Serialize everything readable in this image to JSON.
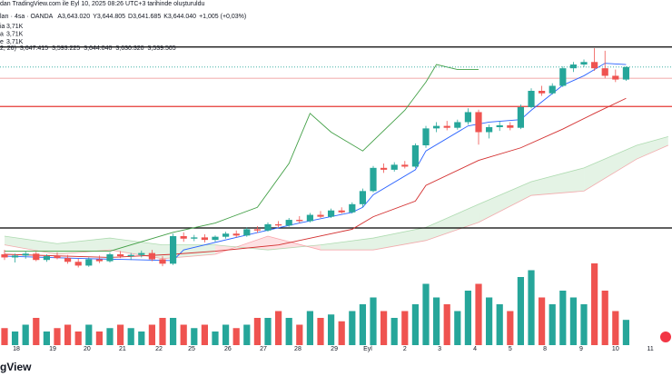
{
  "chart_data": {
    "type": "candlestick",
    "title": "dan TradingView.com ile Eyl 10, 2025 08:26 UTC+3 tarihinde oluşturuldu",
    "symbol": "ları · 4sa · OANDA",
    "ohlc": [
      {
        "key": "A",
        "value": "3,643.020"
      },
      {
        "key": "Y",
        "value": "3,644.805"
      },
      {
        "key": "D",
        "value": "3,641.685"
      },
      {
        "key": "K",
        "value": "3,644.040"
      }
    ],
    "change": "+1,005 (+0,03%)",
    "volume_rows": [
      {
        "name": "ia",
        "value": "3,71K"
      },
      {
        "name": "a",
        "value": "3,71K"
      },
      {
        "name": "e",
        "value": "3,71K"
      }
    ],
    "ichimoku_label": "2, 26)",
    "ichimoku_values": [
      {
        "value": "3,647.415",
        "color": "#2962ff"
      },
      {
        "value": "3,593.225",
        "color": "#d32f2f"
      },
      {
        "value": "3,644.040",
        "color": "#43a047"
      },
      {
        "value": "3,630.320",
        "color": "#a5d6a7"
      },
      {
        "value": "3,539.505",
        "color": "#ef9a9a"
      }
    ],
    "logo": "gView",
    "up_color": "#26a69a",
    "down_color": "#ef5350",
    "open": [
      3345,
      3340,
      3343,
      3346,
      3336,
      3342,
      3339,
      3333,
      3327,
      3337,
      3334,
      3345,
      3342,
      3344,
      3347,
      3337,
      3330,
      3374,
      3370,
      3372,
      3368,
      3373,
      3378,
      3375,
      3385,
      3383,
      3393,
      3391,
      3400,
      3398,
      3408,
      3405,
      3415,
      3412,
      3425,
      3446,
      3483,
      3480,
      3488,
      3485,
      3519,
      3546,
      3550,
      3547,
      3556,
      3572,
      3540,
      3548,
      3551,
      3547,
      3580,
      3606,
      3602,
      3614,
      3642,
      3648,
      3652,
      3642,
      3630,
      3624
    ],
    "high": [
      3352,
      3346,
      3350,
      3349,
      3345,
      3348,
      3344,
      3338,
      3340,
      3343,
      3348,
      3350,
      3347,
      3351,
      3352,
      3342,
      3378,
      3380,
      3376,
      3377,
      3375,
      3381,
      3383,
      3388,
      3390,
      3396,
      3398,
      3403,
      3406,
      3411,
      3414,
      3418,
      3420,
      3428,
      3450,
      3486,
      3490,
      3492,
      3494,
      3522,
      3550,
      3556,
      3558,
      3560,
      3578,
      3576,
      3552,
      3557,
      3556,
      3584,
      3610,
      3614,
      3618,
      3645,
      3652,
      3656,
      3674,
      3670,
      3640,
      3645
    ],
    "low": [
      3336,
      3332,
      3338,
      3334,
      3333,
      3337,
      3330,
      3324,
      3325,
      3331,
      3332,
      3339,
      3336,
      3340,
      3334,
      3326,
      3328,
      3365,
      3366,
      3364,
      3365,
      3370,
      3372,
      3373,
      3379,
      3381,
      3388,
      3389,
      3395,
      3396,
      3403,
      3403,
      3410,
      3410,
      3420,
      3444,
      3475,
      3477,
      3482,
      3483,
      3515,
      3540,
      3543,
      3544,
      3552,
      3520,
      3530,
      3542,
      3543,
      3545,
      3578,
      3598,
      3600,
      3612,
      3636,
      3644,
      3638,
      3626,
      3620,
      3622
    ],
    "close": [
      3340,
      3343,
      3346,
      3336,
      3342,
      3339,
      3333,
      3327,
      3337,
      3334,
      3345,
      3342,
      3344,
      3347,
      3337,
      3330,
      3374,
      3370,
      3372,
      3368,
      3373,
      3378,
      3375,
      3385,
      3383,
      3393,
      3391,
      3400,
      3398,
      3408,
      3405,
      3415,
      3412,
      3425,
      3446,
      3483,
      3480,
      3488,
      3485,
      3519,
      3546,
      3550,
      3547,
      3556,
      3572,
      3540,
      3548,
      3551,
      3547,
      3580,
      3606,
      3602,
      3614,
      3642,
      3648,
      3652,
      3642,
      3630,
      3624,
      3644
    ],
    "volume": [
      2.5,
      2,
      3,
      4,
      2,
      2.5,
      3,
      2,
      3,
      2,
      2.5,
      3,
      2.5,
      2,
      3,
      4,
      4,
      3,
      2.5,
      3,
      2,
      3,
      2.5,
      3,
      4,
      4,
      5,
      4,
      3,
      5,
      4,
      4.5,
      3.5,
      5,
      6,
      7,
      5,
      4,
      5,
      6,
      9,
      7,
      6,
      5,
      8,
      9,
      7,
      6,
      5,
      10,
      11,
      7,
      6,
      8,
      7,
      6,
      12,
      8,
      5,
      3.71
    ],
    "xlim": [
      -0.43,
      63.36
    ],
    "ylim": [
      3316,
      3751
    ],
    "y2lim": [
      0,
      14
    ],
    "xticks": [
      {
        "value": 1.12,
        "label": "18"
      },
      {
        "value": 4.57,
        "label": "19"
      },
      {
        "value": 7.84,
        "label": "20"
      },
      {
        "value": 11.2,
        "label": "21"
      },
      {
        "value": 14.66,
        "label": "22"
      },
      {
        "value": 17.76,
        "label": "25"
      },
      {
        "value": 21.2,
        "label": "26"
      },
      {
        "value": 24.57,
        "label": "27"
      },
      {
        "value": 27.84,
        "label": "28"
      },
      {
        "value": 31.3,
        "label": "29"
      },
      {
        "value": 34.48,
        "label": "Eyl"
      },
      {
        "value": 38.0,
        "label": "2"
      },
      {
        "value": 41.3,
        "label": "3"
      },
      {
        "value": 44.66,
        "label": "4"
      },
      {
        "value": 48.0,
        "label": "5"
      },
      {
        "value": 51.3,
        "label": "8"
      },
      {
        "value": 54.74,
        "label": "9"
      },
      {
        "value": 58.0,
        "label": "10"
      },
      {
        "value": 61.3,
        "label": "11"
      }
    ],
    "levels": [
      {
        "value": 3676,
        "color": "#000000"
      },
      {
        "value": 3387,
        "color": "#000000"
      },
      {
        "value": 3581,
        "color": "#e53935"
      },
      {
        "value": 3626,
        "color": "#f4b4b4"
      }
    ],
    "cloud": {
      "x": [
        0,
        5,
        10,
        15,
        20,
        25,
        30,
        35,
        40,
        45,
        50,
        55,
        60,
        63
      ],
      "span_a": [
        3374,
        3362,
        3371,
        3360,
        3360,
        3352,
        3360,
        3371,
        3388,
        3425,
        3461,
        3483,
        3519,
        3533
      ],
      "span_b": [
        3360,
        3345,
        3352,
        3338,
        3345,
        3374,
        3352,
        3352,
        3367,
        3396,
        3439,
        3446,
        3497,
        3519
      ],
      "up_color": "#4caf50",
      "down_color": "#f23645"
    },
    "lines": [
      {
        "color": "#2962ff",
        "x": [
          0,
          8,
          16,
          17,
          22,
          28,
          33,
          34,
          35,
          39,
          40,
          44,
          46,
          49,
          50,
          53,
          55,
          57,
          59
        ],
        "values": [
          3342,
          3338,
          3335,
          3352,
          3372,
          3395,
          3412,
          3420,
          3440,
          3480,
          3510,
          3550,
          3556,
          3560,
          3575,
          3615,
          3630,
          3650,
          3648
        ]
      },
      {
        "color": "#d32f2f",
        "x": [
          0,
          10,
          16,
          20,
          26,
          33,
          35,
          39,
          40,
          45,
          49,
          53,
          56,
          59
        ],
        "values": [
          3345,
          3340,
          3345,
          3350,
          3360,
          3385,
          3405,
          3430,
          3455,
          3495,
          3515,
          3545,
          3570,
          3594
        ]
      },
      {
        "color": "#43a047",
        "x": [
          0,
          10,
          16,
          20,
          24,
          27,
          29,
          31,
          34,
          38,
          40,
          41,
          43,
          45
        ],
        "values": [
          3350,
          3350,
          3380,
          3395,
          3420,
          3490,
          3570,
          3540,
          3510,
          3575,
          3620,
          3648,
          3640,
          3640
        ]
      }
    ]
  }
}
